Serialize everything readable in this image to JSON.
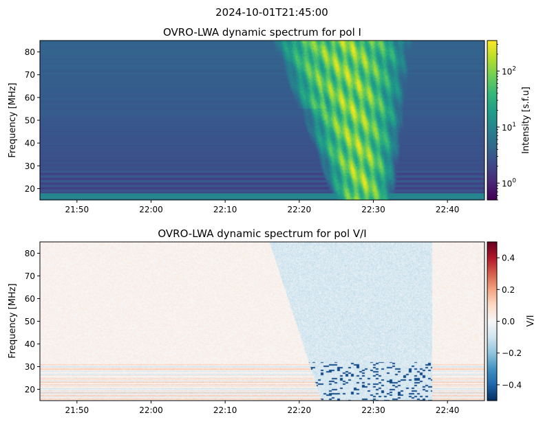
{
  "suptitle": "2024-10-01T21:45:00",
  "colors": {
    "viridis": [
      "#440154",
      "#482878",
      "#3e4989",
      "#31688e",
      "#26828e",
      "#1f9e89",
      "#35b779",
      "#6ece58",
      "#b5de2b",
      "#fde725"
    ],
    "rdbu": [
      "#053061",
      "#2166ac",
      "#4393c3",
      "#92c5de",
      "#d1e5f0",
      "#f7f7f7",
      "#fddbc7",
      "#f4a582",
      "#d6604d",
      "#b2182b",
      "#67001f"
    ]
  },
  "chart_data": [
    {
      "type": "heatmap",
      "title": "OVRO-LWA dynamic spectrum for pol I",
      "xlabel": "",
      "ylabel": "Frequency [MHz]",
      "x_range": [
        "21:45:00",
        "22:45:00"
      ],
      "x_ticks": [
        "21:50",
        "22:00",
        "22:10",
        "22:20",
        "22:30",
        "22:40"
      ],
      "y_range": [
        15,
        85
      ],
      "y_ticks": [
        20,
        30,
        40,
        50,
        60,
        70,
        80
      ],
      "colorbar": {
        "label": "Intensity [s.f.u]",
        "scale": "log",
        "range": [
          0.5,
          350
        ],
        "colormap": "viridis",
        "ticks": [
          {
            "value": 1,
            "base": "10",
            "exp": "0"
          },
          {
            "value": 10,
            "base": "10",
            "exp": "1"
          },
          {
            "value": 100,
            "base": "10",
            "exp": "2"
          }
        ]
      },
      "features": {
        "background_level": 3,
        "burst_start_time": "22:16",
        "burst_end_time": "22:38",
        "burst_peak_level": 300,
        "low_band_level": 10
      }
    },
    {
      "type": "heatmap",
      "title": "OVRO-LWA dynamic spectrum for pol V/I",
      "xlabel": "",
      "ylabel": "Frequency [MHz]",
      "x_range": [
        "21:45:00",
        "22:45:00"
      ],
      "x_ticks": [
        "21:50",
        "22:00",
        "22:10",
        "22:20",
        "22:30",
        "22:40"
      ],
      "y_range": [
        15,
        85
      ],
      "y_ticks": [
        20,
        30,
        40,
        50,
        60,
        70,
        80
      ],
      "colorbar": {
        "label": "V/I",
        "scale": "linear",
        "range": [
          -0.5,
          0.5
        ],
        "colormap": "RdBu_r",
        "ticks": [
          {
            "value": 0.4,
            "text": "0.4"
          },
          {
            "value": 0.2,
            "text": "0.2"
          },
          {
            "value": 0.0,
            "text": "0.0"
          },
          {
            "value": -0.2,
            "text": "−0.2"
          },
          {
            "value": -0.4,
            "text": "−0.4"
          }
        ]
      },
      "features": {
        "background_level": 0.02,
        "burst_level": -0.08,
        "strong_negative_level": -0.45
      }
    }
  ]
}
